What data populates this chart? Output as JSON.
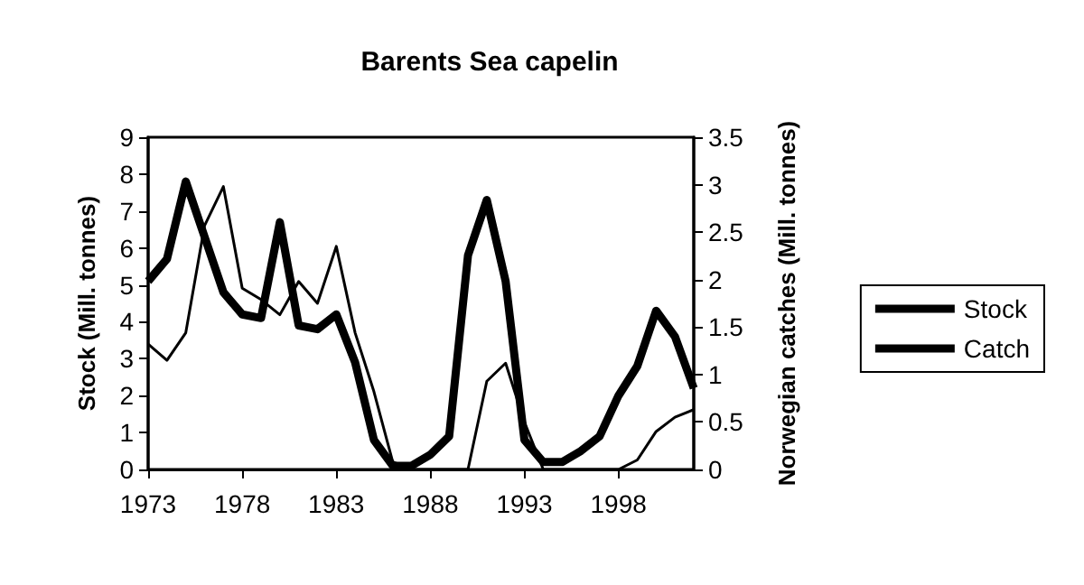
{
  "chart_data": {
    "type": "line",
    "title": "Barents Sea capelin",
    "ylabel": "Stock (Mill. tonnes)",
    "y2label": "Norwegian catches (Mill. tonnes)",
    "x": [
      1973,
      1974,
      1975,
      1976,
      1977,
      1978,
      1979,
      1980,
      1981,
      1982,
      1983,
      1984,
      1985,
      1986,
      1987,
      1988,
      1989,
      1990,
      1991,
      1992,
      1993,
      1994,
      1995,
      1996,
      1997,
      1998,
      1999,
      2000,
      2001,
      2002
    ],
    "xlim": [
      1973,
      2002
    ],
    "xticks": [
      1973,
      1978,
      1983,
      1988,
      1993,
      1998
    ],
    "ylim": [
      0,
      9
    ],
    "yticks": [
      0,
      1,
      2,
      3,
      4,
      5,
      6,
      7,
      8,
      9
    ],
    "y2lim": [
      0,
      3.5
    ],
    "y2ticks": [
      0,
      0.5,
      1,
      1.5,
      2,
      2.5,
      3,
      3.5
    ],
    "series": [
      {
        "name": "Stock",
        "color": "#000000",
        "values": [
          5.1,
          5.7,
          7.8,
          6.3,
          4.8,
          4.2,
          4.1,
          6.7,
          3.9,
          3.8,
          4.2,
          2.9,
          0.8,
          0.1,
          0.1,
          0.4,
          0.9,
          5.8,
          7.3,
          5.1,
          0.8,
          0.2,
          0.2,
          0.5,
          0.9,
          2.0,
          2.8,
          4.3,
          3.6,
          2.2
        ]
      },
      {
        "name": "Catch",
        "color": "#000000",
        "axis": "y2",
        "values": [
          1.32,
          1.15,
          1.44,
          2.57,
          2.98,
          1.91,
          1.79,
          1.63,
          1.98,
          1.75,
          2.35,
          1.44,
          0.82,
          0.08,
          0,
          0,
          0,
          0,
          0.93,
          1.12,
          0.5,
          0,
          0,
          0,
          0,
          0,
          0.1,
          0.4,
          0.55,
          0.63
        ]
      }
    ],
    "legend": "right",
    "grid": false,
    "marker": "none",
    "line_style": "solid"
  }
}
